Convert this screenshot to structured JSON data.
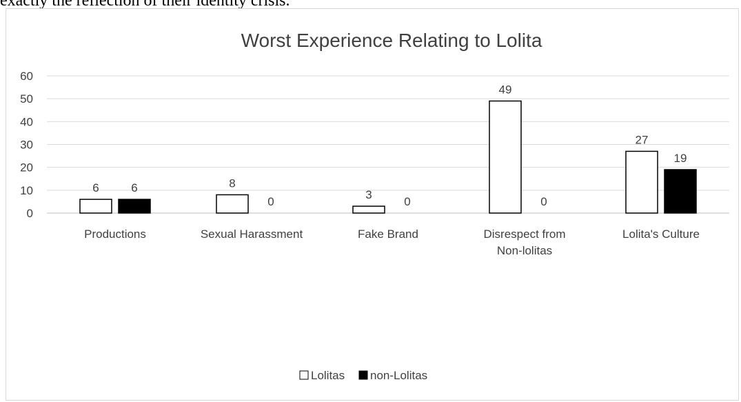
{
  "document": {
    "text_above": "exactly the reflection of their identity crisis."
  },
  "chart_data": {
    "type": "bar",
    "title": "Worst Experience Relating to Lolita",
    "categories": [
      "Productions",
      "Sexual Harassment",
      "Fake Brand",
      "Disrespect from Non-lolitas",
      "Lolita's Culture"
    ],
    "category_lines": [
      [
        "Productions"
      ],
      [
        "Sexual Harassment"
      ],
      [
        "Fake Brand"
      ],
      [
        "Disrespect from",
        "Non-lolitas"
      ],
      [
        "Lolita's Culture"
      ]
    ],
    "series": [
      {
        "name": "Lolitas",
        "values": [
          6,
          8,
          3,
          49,
          27
        ],
        "fill": "#ffffff",
        "stroke": "#000000"
      },
      {
        "name": "non-Lolitas",
        "values": [
          6,
          0,
          0,
          0,
          19
        ],
        "fill": "#000000",
        "stroke": "#000000"
      }
    ],
    "ylim": [
      0,
      60
    ],
    "yticks": [
      0,
      10,
      20,
      30,
      40,
      50,
      60
    ],
    "xlabel": "",
    "ylabel": "",
    "grid": true,
    "legend": "bottom-center"
  }
}
